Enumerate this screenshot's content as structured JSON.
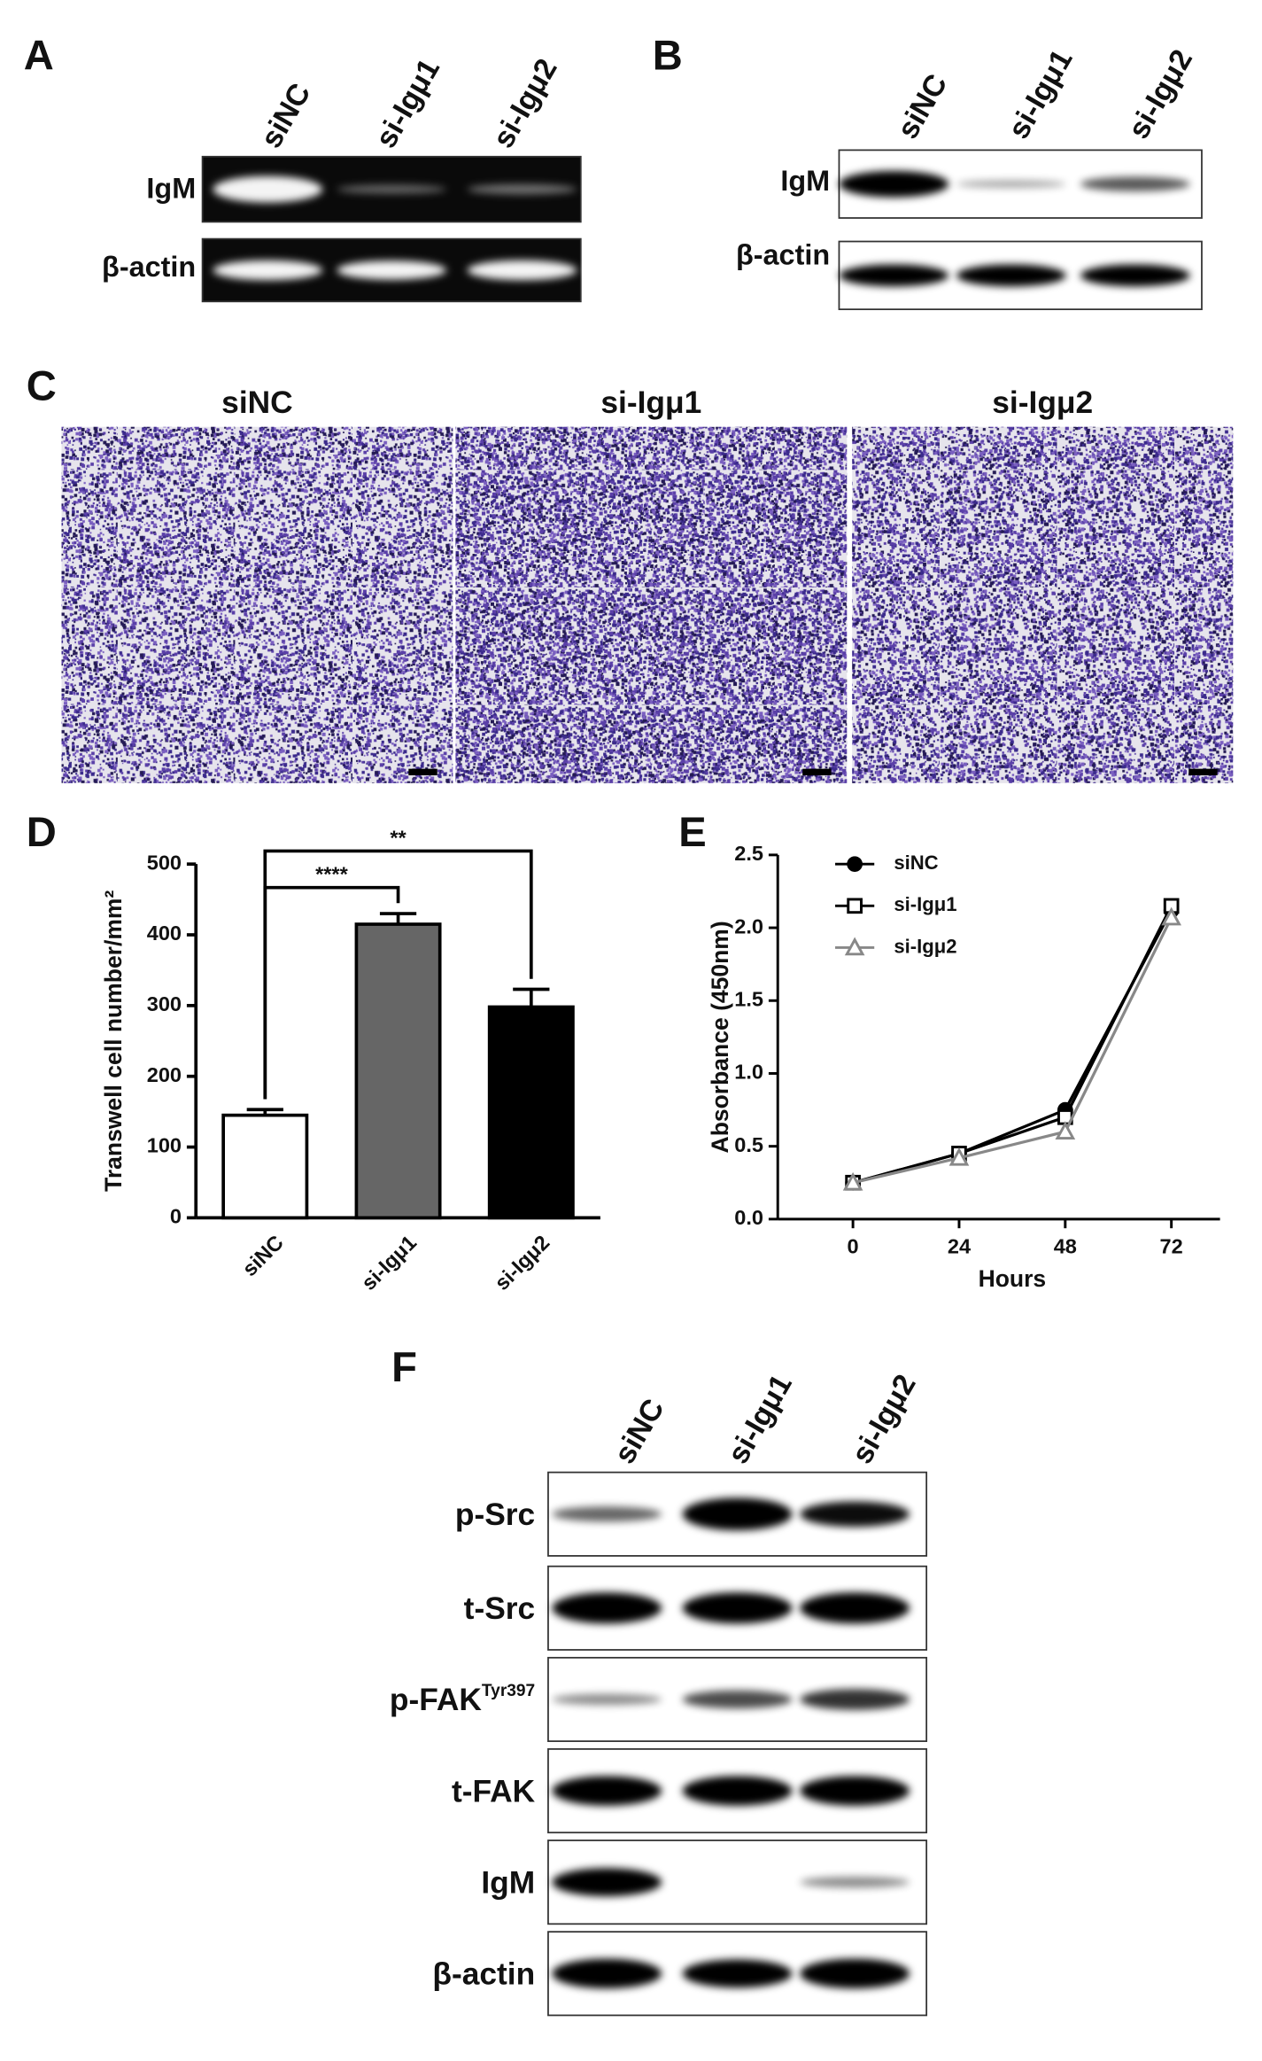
{
  "panel_A": {
    "label": "A",
    "lanes": [
      "siNC",
      "si-Igμ1",
      "si-Igμ2"
    ],
    "rows": [
      "IgM",
      "β-actin"
    ]
  },
  "panel_B": {
    "label": "B",
    "lanes": [
      "siNC",
      "si-Igμ1",
      "si-Igμ2"
    ],
    "rows": [
      "IgM",
      "β-actin"
    ]
  },
  "panel_C": {
    "label": "C",
    "titles": [
      "siNC",
      "si-Igμ1",
      "si-Igμ2"
    ]
  },
  "panel_F": {
    "label": "F",
    "lanes": [
      "siNC",
      "si-Igμ1",
      "si-Igμ2"
    ],
    "rows": [
      "p-Src",
      "t-Src",
      {
        "text": "p-FAK",
        "sup": "Tyr397"
      },
      "t-FAK",
      "IgM",
      "β-actin"
    ]
  },
  "chart_data": [
    {
      "type": "bar",
      "label": "D",
      "ylabel": "Transwell cell number/mm²",
      "categories": [
        "siNC",
        "si-Igμ1",
        "si-Igμ2"
      ],
      "values": [
        145,
        415,
        298
      ],
      "errors": [
        8,
        15,
        25
      ],
      "colors": [
        "#ffffff",
        "#666666",
        "#000000"
      ],
      "ylim": [
        0,
        500
      ],
      "yticks": [
        0,
        100,
        200,
        300,
        400,
        500
      ],
      "annotations": [
        {
          "text": "****",
          "between": [
            "siNC",
            "si-Igμ1"
          ]
        },
        {
          "text": "**",
          "between": [
            "siNC",
            "si-Igμ2"
          ]
        }
      ]
    },
    {
      "type": "line",
      "label": "E",
      "xlabel": "Hours",
      "ylabel": "Absorbance (450nm)",
      "x": [
        0,
        24,
        48,
        72
      ],
      "xlim": [
        -17,
        83
      ],
      "xticks": [
        0,
        24,
        48,
        72
      ],
      "ylim": [
        0,
        2.5
      ],
      "yticks": [
        {
          "value": 0,
          "label": "0.0"
        },
        {
          "value": 0.5,
          "label": "0.5"
        },
        {
          "value": 1,
          "label": "1.0"
        },
        {
          "value": 1.5,
          "label": "1.5"
        },
        {
          "value": 2,
          "label": "2.0"
        },
        {
          "value": 2.5,
          "label": "2.5"
        }
      ],
      "legend": "upper left",
      "series": [
        {
          "name": "siNC",
          "color": "#000000",
          "marker": "circle",
          "marker_fill": "#000000",
          "values": [
            0.25,
            0.45,
            0.75,
            2.12
          ]
        },
        {
          "name": "si-Igμ1",
          "color": "#000000",
          "marker": "square",
          "marker_fill": "#ffffff",
          "values": [
            0.25,
            0.45,
            0.7,
            2.15
          ]
        },
        {
          "name": "si-Igμ2",
          "color": "#888888",
          "marker": "triangle",
          "marker_fill": "#ffffff",
          "values": [
            0.25,
            0.42,
            0.6,
            2.07
          ]
        }
      ]
    }
  ]
}
